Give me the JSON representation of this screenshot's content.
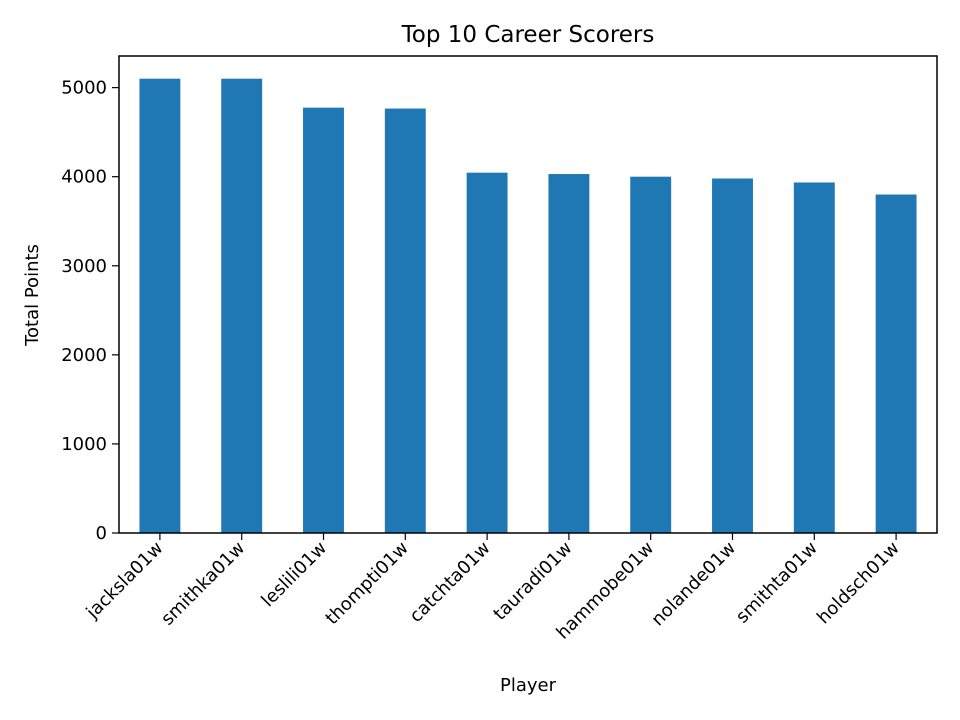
{
  "chart_data": {
    "type": "bar",
    "title": "Top 10 Career Scorers",
    "xlabel": "Player",
    "ylabel": "Total Points",
    "categories": [
      "jacksla01w",
      "smithka01w",
      "leslili01w",
      "thompti01w",
      "catchta01w",
      "tauradi01w",
      "hammobe01w",
      "nolande01w",
      "smithta01w",
      "holdsch01w"
    ],
    "values": [
      5100,
      5100,
      4775,
      4765,
      4045,
      4030,
      4000,
      3980,
      3935,
      3800
    ],
    "ylim": [
      0,
      5355
    ],
    "yticks": [
      0,
      1000,
      2000,
      3000,
      4000,
      5000
    ],
    "grid": false,
    "legend": "none",
    "bar_color": "#1f77b4"
  }
}
